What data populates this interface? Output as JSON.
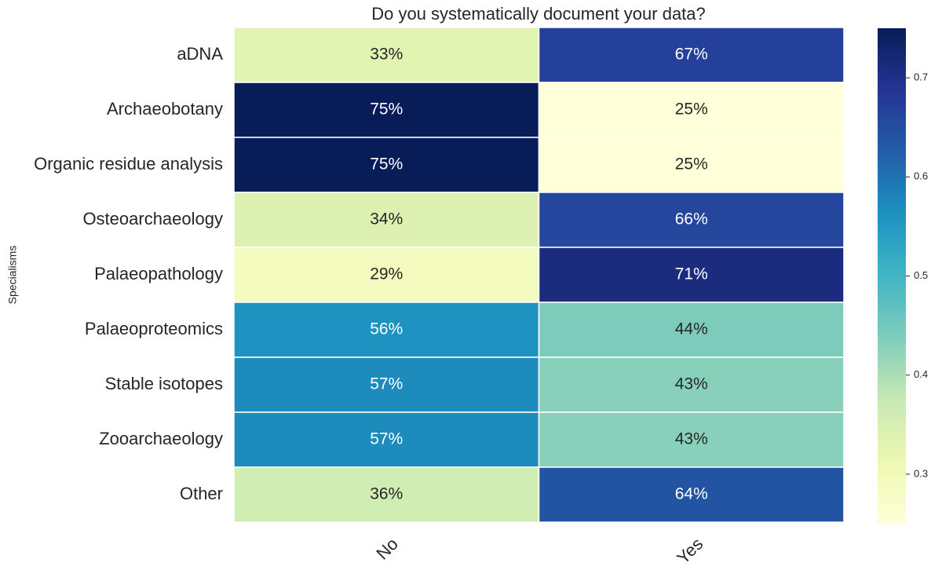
{
  "chart_data": {
    "type": "heatmap",
    "title": "Do you systematically document your data?",
    "ylabel": "Specialisms",
    "categories": [
      "aDNA",
      "Archaeobotany",
      "Organic residue analysis",
      "Osteoarchaeology",
      "Palaeopathology",
      "Palaeoproteomics",
      "Stable isotopes",
      "Zooarchaeology",
      "Other"
    ],
    "series": [
      {
        "name": "No",
        "values": [
          0.33,
          0.75,
          0.75,
          0.34,
          0.29,
          0.56,
          0.57,
          0.57,
          0.36
        ],
        "value_labels": [
          "33%",
          "75%",
          "75%",
          "34%",
          "29%",
          "56%",
          "57%",
          "57%",
          "36%"
        ]
      },
      {
        "name": "Yes",
        "values": [
          0.67,
          0.25,
          0.25,
          0.66,
          0.71,
          0.44,
          0.43,
          0.43,
          0.64
        ],
        "value_labels": [
          "67%",
          "25%",
          "25%",
          "66%",
          "71%",
          "44%",
          "43%",
          "43%",
          "64%"
        ]
      }
    ],
    "colormap": "YlGnBu",
    "clim": [
      0.25,
      0.75
    ],
    "cticks": [
      0.3,
      0.4,
      0.5,
      0.6,
      0.7
    ]
  }
}
